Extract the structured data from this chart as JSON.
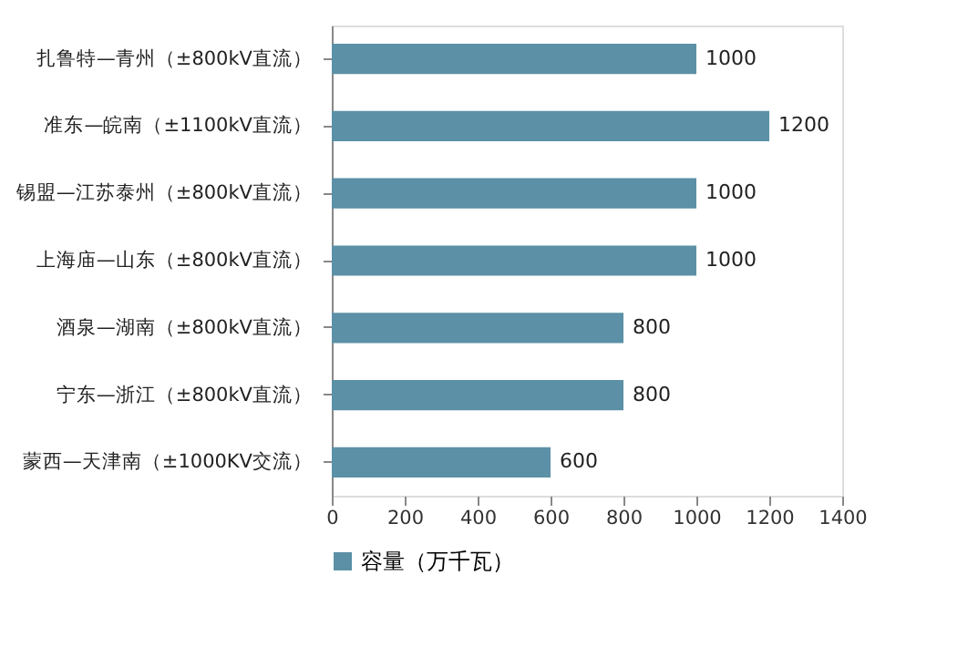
{
  "chart_data": {
    "type": "bar",
    "orientation": "horizontal",
    "categories": [
      "扎鲁特—青州（±800kV直流）",
      "准东—皖南（±1100kV直流）",
      "锡盟—江苏泰州（±800kV直流）",
      "上海庙—山东（±800kV直流）",
      "酒泉—湖南（±800kV直流）",
      "宁东—浙江（±800kV直流）",
      "蒙西—天津南（±1000KV交流）"
    ],
    "series": [
      {
        "name": "容量（万千瓦）",
        "color": "#5b90a6",
        "values": [
          1000,
          1200,
          1000,
          1000,
          800,
          800,
          600
        ]
      }
    ],
    "xlim": [
      0,
      1400
    ],
    "xticks": [
      0,
      200,
      400,
      600,
      800,
      1000,
      1200,
      1400
    ],
    "data_labels": true,
    "grid": false,
    "legend": "bottom"
  }
}
